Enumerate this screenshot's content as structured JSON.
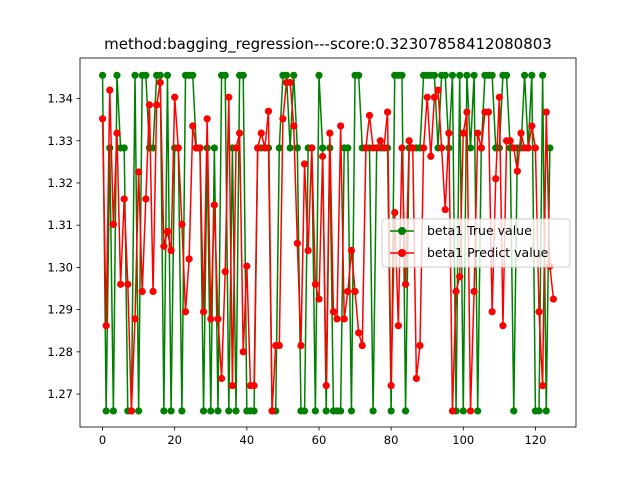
{
  "chart_data": {
    "type": "line",
    "title": "method:bagging_regression---score:0.32307858412080803",
    "xlabel": "",
    "ylabel": "",
    "xlim": [
      -6.25,
      131.25
    ],
    "ylim": [
      1.2622,
      1.3496
    ],
    "xticks": [
      0,
      20,
      40,
      60,
      80,
      100,
      120
    ],
    "yticks": [
      1.27,
      1.28,
      1.29,
      1.3,
      1.31,
      1.32,
      1.33,
      1.34
    ],
    "ytick_labels": [
      "1.27",
      "1.28",
      "1.29",
      "1.30",
      "1.31",
      "1.32",
      "1.33",
      "1.34"
    ],
    "grid": false,
    "legend_position": "center-right",
    "series": [
      {
        "name": "beta1 True value",
        "color": "#008000",
        "marker": "circle",
        "y": [
          1.3455,
          1.266,
          1.3283,
          1.266,
          1.3455,
          1.3283,
          1.3283,
          1.266,
          1.266,
          1.3455,
          1.266,
          1.3455,
          1.3455,
          1.3283,
          1.3283,
          1.3455,
          1.3455,
          1.266,
          1.3455,
          1.266,
          1.3283,
          1.3283,
          1.266,
          1.3455,
          1.3455,
          1.3455,
          1.3283,
          1.3283,
          1.266,
          1.3283,
          1.266,
          1.3283,
          1.266,
          1.3455,
          1.3455,
          1.266,
          1.3283,
          1.266,
          1.3455,
          1.3455,
          1.266,
          1.266,
          1.266,
          1.3283,
          1.3283,
          1.3283,
          1.3283,
          1.266,
          1.266,
          1.3283,
          1.3455,
          1.3455,
          1.3283,
          1.3455,
          1.3283,
          1.266,
          1.266,
          1.3283,
          1.3283,
          1.266,
          1.3455,
          1.3283,
          1.266,
          1.3283,
          1.266,
          1.266,
          1.266,
          1.3283,
          1.3283,
          1.266,
          1.3455,
          1.3455,
          1.3283,
          1.3283,
          1.3283,
          1.266,
          1.3283,
          1.3283,
          1.3283,
          1.3283,
          1.266,
          1.3455,
          1.3455,
          1.3455,
          1.266,
          1.3283,
          1.3283,
          1.3283,
          1.3283,
          1.3455,
          1.3455,
          1.3455,
          1.3455,
          1.3283,
          1.3455,
          1.3455,
          1.3283,
          1.3455,
          1.266,
          1.3455,
          1.266,
          1.3455,
          1.3283,
          1.3455,
          1.266,
          1.3283,
          1.3455,
          1.3455,
          1.3455,
          1.3283,
          1.3283,
          1.3455,
          1.3455,
          1.3283,
          1.266,
          1.3283,
          1.3283,
          1.3455,
          1.3283,
          1.3455,
          1.266,
          1.266,
          1.3455,
          1.266,
          1.3283
        ]
      },
      {
        "name": "beta1 Predict value",
        "color": "#ff0000",
        "marker": "circle",
        "y": [
          1.3352,
          1.2862,
          1.342,
          1.3102,
          1.3318,
          1.296,
          1.3162,
          1.296,
          1.266,
          1.2878,
          1.3226,
          1.2943,
          1.3162,
          1.3385,
          1.2943,
          1.3385,
          1.3438,
          1.305,
          1.3085,
          1.304,
          1.3403,
          1.3283,
          1.3102,
          1.2895,
          1.302,
          1.3335,
          1.3283,
          1.3283,
          1.2895,
          1.3352,
          1.2878,
          1.3148,
          1.2878,
          1.2737,
          1.299,
          1.3403,
          1.272,
          1.3283,
          1.3318,
          1.28,
          1.3003,
          1.272,
          1.272,
          1.3283,
          1.3318,
          1.3283,
          1.337,
          1.266,
          1.2815,
          1.2815,
          1.3352,
          1.3438,
          1.3438,
          1.3335,
          1.3057,
          1.2815,
          1.3245,
          1.304,
          1.3283,
          1.296,
          1.2925,
          1.3263,
          1.272,
          1.3318,
          1.2895,
          1.2878,
          1.3335,
          1.2878,
          1.2943,
          1.304,
          1.2943,
          1.2845,
          1.2815,
          1.3283,
          1.336,
          1.3283,
          1.3283,
          1.33,
          1.3283,
          1.3368,
          1.272,
          1.313,
          1.2862,
          1.3283,
          1.296,
          1.33,
          1.3283,
          1.2737,
          1.2815,
          1.3283,
          1.3403,
          1.3263,
          1.3403,
          1.342,
          1.3283,
          1.3137,
          1.3318,
          1.266,
          1.2943,
          1.2978,
          1.3318,
          1.3368,
          1.266,
          1.2943,
          1.3318,
          1.3283,
          1.3368,
          1.3368,
          1.2895,
          1.321,
          1.3403,
          1.2862,
          1.33,
          1.33,
          1.3283,
          1.3228,
          1.3318,
          1.3283,
          1.3283,
          1.3335,
          1.3283,
          1.2895,
          1.272,
          1.3368,
          1.3003,
          1.2925
        ]
      }
    ]
  }
}
